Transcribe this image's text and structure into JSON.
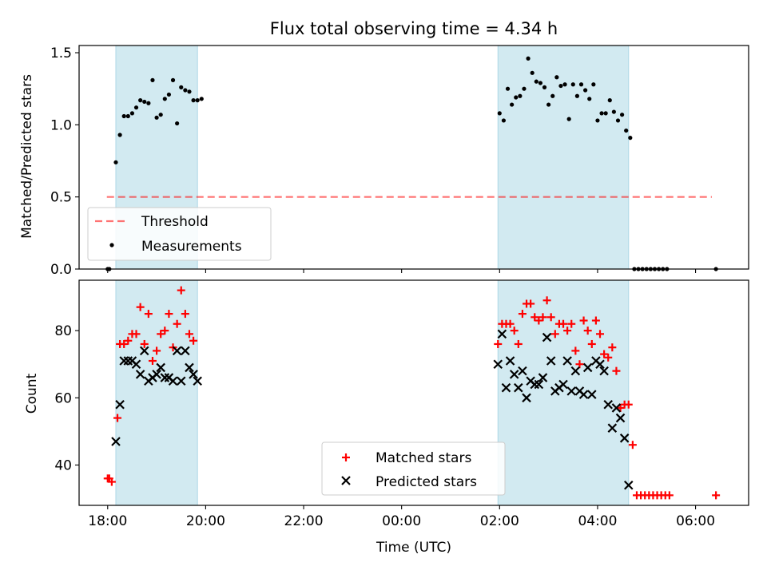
{
  "figure": {
    "title": "Flux total observing time = 4.34 h",
    "xlabel": "Time (UTC)"
  },
  "colors": {
    "shade": "#add8e6",
    "threshold": "#ff0000",
    "measurements": "#000000",
    "matched": "#ff0000",
    "predicted": "#000000"
  },
  "chart_data": [
    {
      "type": "scatter",
      "ylabel": "Matched/Predicted stars",
      "xlim": [
        "17:25",
        "07:05"
      ],
      "ylim": [
        0,
        1.55
      ],
      "x_ticks": [
        "18:00",
        "20:00",
        "22:00",
        "00:00",
        "02:00",
        "04:00",
        "06:00"
      ],
      "y_ticks": [
        "0.0",
        "0.5",
        "1.0",
        "1.5"
      ],
      "shaded_intervals": [
        [
          "18:10",
          "19:50"
        ],
        [
          "01:58",
          "04:38"
        ]
      ],
      "legend": {
        "location": "lower-left",
        "entries": [
          "Threshold",
          "Measurements"
        ]
      },
      "series": [
        {
          "name": "Threshold",
          "style": "dashed-line",
          "x": [
            "17:59",
            "06:20"
          ],
          "y": [
            0.5,
            0.5
          ]
        },
        {
          "name": "Measurements",
          "style": "dot",
          "x": [
            "18:00",
            "18:02",
            "18:10",
            "18:15",
            "18:20",
            "18:25",
            "18:30",
            "18:35",
            "18:40",
            "18:45",
            "18:50",
            "18:55",
            "19:00",
            "19:05",
            "19:10",
            "19:15",
            "19:20",
            "19:25",
            "19:30",
            "19:35",
            "19:40",
            "19:45",
            "19:50",
            "19:55",
            "02:00",
            "02:05",
            "02:10",
            "02:15",
            "02:20",
            "02:25",
            "02:30",
            "02:35",
            "02:40",
            "02:45",
            "02:50",
            "02:55",
            "03:00",
            "03:05",
            "03:10",
            "03:15",
            "03:20",
            "03:25",
            "03:30",
            "03:35",
            "03:40",
            "03:45",
            "03:50",
            "03:55",
            "04:00",
            "04:05",
            "04:10",
            "04:15",
            "04:20",
            "04:25",
            "04:30",
            "04:35",
            "04:40",
            "04:45",
            "04:50",
            "04:55",
            "05:00",
            "05:05",
            "05:10",
            "05:15",
            "05:20",
            "05:25",
            "06:25"
          ],
          "y": [
            0,
            0,
            0.74,
            0.93,
            1.06,
            1.06,
            1.08,
            1.12,
            1.17,
            1.16,
            1.15,
            1.31,
            1.05,
            1.07,
            1.18,
            1.21,
            1.31,
            1.01,
            1.26,
            1.24,
            1.23,
            1.17,
            1.17,
            1.18,
            1.08,
            1.03,
            1.25,
            1.14,
            1.19,
            1.2,
            1.25,
            1.46,
            1.36,
            1.3,
            1.29,
            1.26,
            1.14,
            1.2,
            1.33,
            1.27,
            1.28,
            1.04,
            1.28,
            1.2,
            1.28,
            1.24,
            1.18,
            1.28,
            1.03,
            1.08,
            1.08,
            1.17,
            1.09,
            1.03,
            1.07,
            0.96,
            0.91,
            0,
            0,
            0,
            0,
            0,
            0,
            0,
            0,
            0,
            0
          ]
        }
      ]
    },
    {
      "type": "scatter",
      "ylabel": "Count",
      "xlim": [
        "17:25",
        "07:05"
      ],
      "ylim": [
        28,
        95
      ],
      "x_ticks": [
        "18:00",
        "20:00",
        "22:00",
        "00:00",
        "02:00",
        "04:00",
        "06:00"
      ],
      "y_ticks": [
        "40",
        "60",
        "80"
      ],
      "shaded_intervals": [
        [
          "18:10",
          "19:50"
        ],
        [
          "01:58",
          "04:38"
        ]
      ],
      "legend": {
        "location": "lower-center",
        "entries": [
          "Matched stars",
          "Predicted stars"
        ]
      },
      "series": [
        {
          "name": "Matched stars",
          "style": "plus",
          "x": [
            "18:00",
            "18:02",
            "18:05",
            "18:12",
            "18:15",
            "18:20",
            "18:25",
            "18:30",
            "18:35",
            "18:40",
            "18:45",
            "18:50",
            "18:55",
            "19:00",
            "19:05",
            "19:10",
            "19:15",
            "19:20",
            "19:25",
            "19:30",
            "19:35",
            "19:40",
            "19:45",
            "19:50",
            "19:55",
            "01:58",
            "02:03",
            "02:08",
            "02:13",
            "02:18",
            "02:23",
            "02:28",
            "02:33",
            "02:38",
            "02:43",
            "02:48",
            "02:53",
            "02:58",
            "03:03",
            "03:08",
            "03:13",
            "03:18",
            "03:23",
            "03:28",
            "03:33",
            "03:38",
            "03:43",
            "03:48",
            "03:53",
            "03:58",
            "04:03",
            "04:08",
            "04:13",
            "04:18",
            "04:23",
            "04:28",
            "04:33",
            "04:38",
            "04:43",
            "04:48",
            "04:53",
            "04:58",
            "05:03",
            "05:08",
            "05:13",
            "05:18",
            "05:23",
            "05:28",
            "06:25"
          ],
          "y": [
            36,
            36,
            35,
            54,
            76,
            76,
            77,
            79,
            79,
            87,
            76,
            85,
            71,
            74,
            79,
            80,
            85,
            75,
            82,
            92,
            85,
            79,
            77,
            null,
            null,
            76,
            82,
            82,
            82,
            80,
            76,
            85,
            88,
            88,
            84,
            83,
            84,
            89,
            84,
            79,
            82,
            82,
            80,
            82,
            74,
            70,
            83,
            80,
            76,
            83,
            79,
            73,
            72,
            75,
            68,
            57,
            58,
            58,
            46,
            31,
            31,
            31,
            31,
            31,
            31,
            31,
            31,
            31,
            31
          ]
        },
        {
          "name": "Predicted stars",
          "style": "x",
          "x": [
            "18:10",
            "18:15",
            "18:20",
            "18:25",
            "18:30",
            "18:35",
            "18:40",
            "18:45",
            "18:50",
            "18:55",
            "19:00",
            "19:05",
            "19:10",
            "19:15",
            "19:20",
            "19:25",
            "19:30",
            "19:35",
            "19:40",
            "19:45",
            "19:50",
            "01:58",
            "02:03",
            "02:08",
            "02:13",
            "02:18",
            "02:23",
            "02:28",
            "02:33",
            "02:38",
            "02:43",
            "02:48",
            "02:53",
            "02:58",
            "03:03",
            "03:08",
            "03:13",
            "03:18",
            "03:23",
            "03:28",
            "03:33",
            "03:38",
            "03:43",
            "03:48",
            "03:53",
            "03:58",
            "04:03",
            "04:08",
            "04:13",
            "04:18",
            "04:23",
            "04:28",
            "04:33",
            "04:38",
            "04:43"
          ],
          "y": [
            47,
            58,
            71,
            71,
            71,
            70,
            67,
            74,
            65,
            66,
            67,
            69,
            66,
            66,
            65,
            74,
            65,
            74,
            69,
            67,
            65,
            70,
            79,
            63,
            71,
            67,
            63,
            68,
            60,
            65,
            64,
            64,
            66,
            78,
            71,
            62,
            63,
            64,
            71,
            62,
            68,
            62,
            61,
            69,
            61,
            71,
            70,
            68,
            58,
            51,
            57,
            54,
            48,
            34,
            null
          ]
        }
      ]
    }
  ]
}
